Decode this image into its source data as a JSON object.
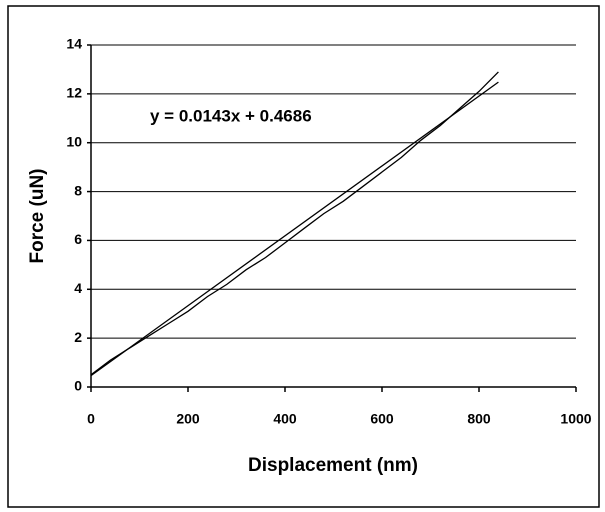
{
  "chart_data": {
    "type": "line",
    "x_label": "Displacement (nm)",
    "y_label": "Force (uN)",
    "x": [
      0,
      40,
      80,
      120,
      160,
      200,
      240,
      280,
      320,
      360,
      400,
      440,
      480,
      520,
      560,
      600,
      640,
      680,
      720,
      760,
      800,
      840
    ],
    "series": [
      {
        "name": "Force",
        "color": "#000000",
        "values": [
          0.5,
          1.1,
          1.6,
          2.1,
          2.6,
          3.1,
          3.7,
          4.2,
          4.8,
          5.3,
          5.9,
          6.5,
          7.1,
          7.6,
          8.2,
          8.8,
          9.4,
          10.1,
          10.7,
          11.4,
          12.1,
          12.9
        ]
      }
    ],
    "trendline": {
      "label": "y = 0.0143x + 0.4686",
      "slope": 0.0143,
      "intercept": 0.4686,
      "x": [
        0,
        840
      ],
      "color": "#000000"
    },
    "xlim": [
      0,
      1000
    ],
    "xticks": [
      0,
      200,
      400,
      600,
      800,
      1000
    ],
    "ylim": [
      0,
      14
    ],
    "yticks": [
      0,
      2,
      4,
      6,
      8,
      10,
      12,
      14
    ],
    "grid": true
  }
}
